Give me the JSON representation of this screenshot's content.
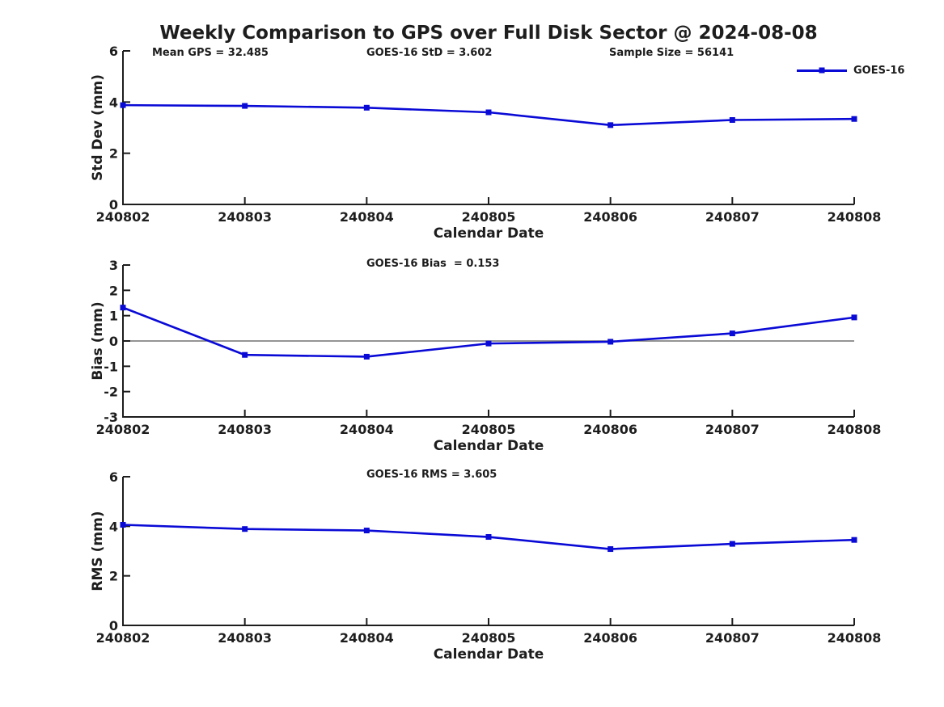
{
  "page": {
    "title": "Weekly Comparison to GPS over Full Disk Sector @ 2024-08-08"
  },
  "colors": {
    "series": "#0a0ad6",
    "axis": "#1d1d1d",
    "text": "#1d1d1d",
    "zero_line": "#707070",
    "background": "#ffffff"
  },
  "legend": {
    "series_label": "GOES-16"
  },
  "chart_data": [
    {
      "type": "line",
      "ylabel": "Std Dev (mm)",
      "xlabel": "Calendar Date",
      "ylim": [
        0,
        6
      ],
      "yticks": [
        0,
        2,
        4,
        6
      ],
      "categories": [
        "240802",
        "240803",
        "240804",
        "240805",
        "240806",
        "240807",
        "240808"
      ],
      "series": [
        {
          "name": "GOES-16",
          "values": [
            3.88,
            3.85,
            3.78,
            3.6,
            3.1,
            3.3,
            3.34
          ]
        }
      ],
      "annotations": [
        {
          "text": "Mean GPS = 32.485"
        },
        {
          "text": "GOES-16 StD = 3.602"
        },
        {
          "text": "Sample Size = 56141"
        }
      ],
      "zero_line": false,
      "grid": false,
      "legend_position": "top-right"
    },
    {
      "type": "line",
      "ylabel": "Bias (mm)",
      "xlabel": "Calendar Date",
      "ylim": [
        -3,
        3
      ],
      "yticks": [
        -3,
        -2,
        -1,
        0,
        1,
        2,
        3
      ],
      "categories": [
        "240802",
        "240803",
        "240804",
        "240805",
        "240806",
        "240807",
        "240808"
      ],
      "series": [
        {
          "name": "GOES-16",
          "values": [
            1.32,
            -0.55,
            -0.62,
            -0.1,
            -0.03,
            0.3,
            0.93
          ]
        }
      ],
      "annotations": [
        {
          "text": "GOES-16 Bias  = 0.153"
        }
      ],
      "zero_line": true,
      "grid": false,
      "legend_position": "none"
    },
    {
      "type": "line",
      "ylabel": "RMS (mm)",
      "xlabel": "Calendar Date",
      "ylim": [
        0,
        6
      ],
      "yticks": [
        0,
        2,
        4,
        6
      ],
      "categories": [
        "240802",
        "240803",
        "240804",
        "240805",
        "240806",
        "240807",
        "240808"
      ],
      "series": [
        {
          "name": "GOES-16",
          "values": [
            4.06,
            3.89,
            3.83,
            3.57,
            3.08,
            3.29,
            3.45
          ]
        }
      ],
      "annotations": [
        {
          "text": "GOES-16 RMS = 3.605"
        }
      ],
      "zero_line": false,
      "grid": false,
      "legend_position": "none"
    }
  ]
}
